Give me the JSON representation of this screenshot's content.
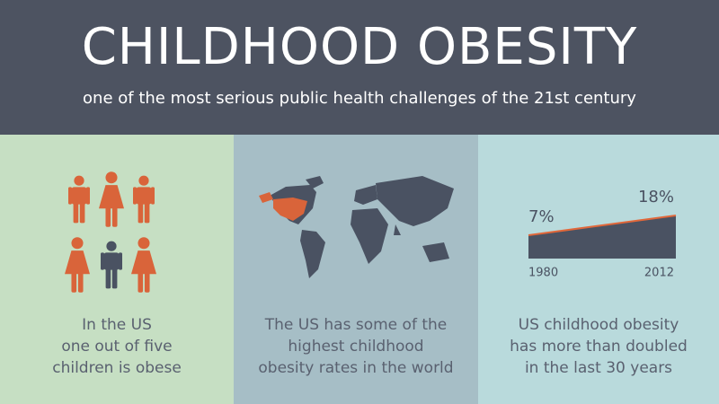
{
  "header": {
    "title": "CHILDHOOD OBESITY",
    "subtitle": "one of the most serious public health challenges of the 21st century"
  },
  "panels": [
    {
      "text_lines": [
        "In the US",
        "one out of five",
        "children is obese"
      ]
    },
    {
      "text_lines": [
        "The US has some of the",
        "highest childhood",
        "obesity rates in the world"
      ]
    },
    {
      "text_lines": [
        "US childhood obesity",
        "has more than doubled",
        "in the last 30 years"
      ]
    }
  ],
  "chart_data": {
    "type": "area",
    "x": [
      1980,
      2012
    ],
    "values": [
      7,
      18
    ],
    "value_labels": [
      "7%",
      "18%"
    ],
    "color": "#4a5262",
    "line_color": "#e0673a"
  }
}
